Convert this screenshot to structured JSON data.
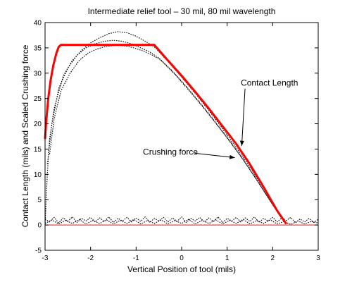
{
  "chart_data": {
    "type": "line",
    "title": "Intermediate relief tool – 30 mil, 80 mil wavelength",
    "xlabel": "Vertical Position of tool (mils)",
    "ylabel": "Contact Length (mils) and Scaled Crushing force",
    "xlim": [
      -3,
      3
    ],
    "ylim": [
      -5,
      40
    ],
    "xticks": [
      -3,
      -2,
      -1,
      0,
      1,
      2,
      3
    ],
    "yticks": [
      -5,
      0,
      5,
      10,
      15,
      20,
      25,
      30,
      35,
      40
    ],
    "grid": false,
    "series": [
      {
        "color": "#ff0000",
        "style": "solid-thick",
        "x": [
          -3.0,
          -2.97,
          -2.93,
          -2.88,
          -2.82,
          -2.75,
          -2.7,
          -2.65,
          -0.6,
          -0.3,
          0.0,
          0.3,
          0.6,
          0.9,
          1.2,
          1.5,
          1.8,
          2.1,
          2.3
        ],
        "y": [
          17.0,
          21.0,
          25.0,
          28.5,
          31.5,
          34.0,
          35.2,
          35.6,
          35.6,
          32.5,
          29.5,
          26.3,
          23.0,
          19.5,
          16.0,
          12.0,
          7.5,
          2.8,
          0.2
        ]
      },
      {
        "color": "#ff0000",
        "style": "solid-thin",
        "x": [
          -3.0,
          3.0
        ],
        "y": [
          0.0,
          0.0
        ]
      },
      {
        "color": "#000000",
        "style": "dotted",
        "x": [
          -3.0,
          -2.95,
          -2.9,
          -2.8,
          -2.6,
          -2.4,
          -2.2,
          -2.0,
          -1.8,
          -1.6,
          -1.4,
          -1.2,
          -1.0,
          -0.8,
          -0.6,
          -0.3,
          0.0,
          0.3,
          0.6,
          0.9,
          1.2,
          1.5,
          1.8,
          2.0,
          2.2,
          2.3
        ],
        "y": [
          0.0,
          10.0,
          17.0,
          23.0,
          29.5,
          32.5,
          34.5,
          36.0,
          37.0,
          37.8,
          38.2,
          38.0,
          37.3,
          36.3,
          35.2,
          32.3,
          29.2,
          26.0,
          22.6,
          19.0,
          15.3,
          11.4,
          7.2,
          4.3,
          1.6,
          0.4
        ]
      },
      {
        "color": "#000000",
        "style": "dotted",
        "x": [
          -2.95,
          -2.85,
          -2.7,
          -2.5,
          -2.3,
          -2.1,
          -1.9,
          -1.7,
          -1.5,
          -1.3,
          -1.1,
          -0.9,
          -0.7,
          -0.5,
          -0.2,
          0.1,
          0.4,
          0.7,
          1.0,
          1.3,
          1.6,
          1.9,
          2.1,
          2.25
        ],
        "y": [
          12.0,
          20.0,
          27.0,
          31.0,
          33.5,
          35.0,
          35.8,
          36.3,
          36.5,
          36.3,
          35.8,
          35.0,
          34.2,
          33.0,
          30.4,
          27.4,
          24.2,
          20.8,
          17.3,
          13.6,
          9.6,
          5.4,
          2.6,
          0.6
        ]
      },
      {
        "color": "#000000",
        "style": "dotted",
        "x": [
          -2.9,
          -2.8,
          -2.65,
          -2.45,
          -2.25,
          -2.05,
          -1.85,
          -1.65,
          -1.45,
          -1.25,
          -1.05,
          -0.85,
          -0.65,
          -0.45,
          -0.15,
          0.15,
          0.45,
          0.75,
          1.05,
          1.35,
          1.65,
          1.95,
          2.15,
          2.3
        ],
        "y": [
          14.0,
          21.0,
          26.5,
          30.0,
          32.5,
          34.0,
          34.8,
          35.3,
          35.5,
          35.4,
          35.0,
          34.4,
          33.6,
          32.5,
          29.8,
          26.7,
          23.5,
          20.1,
          16.6,
          12.9,
          8.9,
          4.7,
          1.9,
          0.3
        ]
      },
      {
        "color": "#000000",
        "style": "dotted-wavy",
        "x": [
          -3.0,
          -2.9,
          -2.8,
          -2.7,
          -2.6,
          -2.5,
          -2.4,
          -2.3,
          -2.2,
          -2.1,
          -2.0,
          -1.9,
          -1.8,
          -1.7,
          -1.6,
          -1.5,
          -1.4,
          -1.3,
          -1.2,
          -1.1,
          -1.0,
          -0.9,
          -0.8,
          -0.7,
          -0.6,
          -0.5,
          -0.4,
          -0.3,
          -0.2,
          -0.1,
          0.0,
          0.1,
          0.2,
          0.3,
          0.4,
          0.5,
          0.6,
          0.7,
          0.8,
          0.9,
          1.0,
          1.1,
          1.2,
          1.3,
          1.4,
          1.5,
          1.6,
          1.7,
          1.8,
          1.9,
          2.0,
          2.1,
          2.2,
          2.3,
          2.4,
          2.5,
          2.6,
          2.7,
          2.8,
          2.9,
          3.0
        ],
        "y": [
          1.2,
          0.6,
          1.5,
          0.4,
          1.4,
          0.7,
          1.6,
          0.5,
          1.3,
          0.8,
          1.5,
          0.6,
          1.4,
          0.7,
          1.6,
          0.5,
          1.3,
          0.8,
          1.5,
          0.6,
          1.4,
          0.7,
          1.6,
          0.5,
          1.3,
          0.8,
          1.5,
          0.6,
          1.4,
          0.7,
          1.6,
          0.5,
          1.3,
          0.8,
          1.5,
          0.6,
          1.4,
          0.7,
          1.6,
          0.5,
          1.3,
          0.8,
          1.5,
          0.6,
          1.4,
          0.7,
          1.6,
          0.5,
          1.3,
          0.8,
          1.5,
          0.6,
          1.4,
          0.9,
          1.5,
          0.4,
          1.2,
          0.6,
          1.3,
          0.5,
          1.1
        ]
      },
      {
        "color": "#000000",
        "style": "dotted-wavy",
        "x": [
          -3.0,
          -2.85,
          -2.7,
          -2.55,
          -2.4,
          -2.25,
          -2.1,
          -1.95,
          -1.8,
          -1.65,
          -1.5,
          -1.35,
          -1.2,
          -1.05,
          -0.9,
          -0.75,
          -0.6,
          -0.45,
          -0.3,
          -0.15,
          0.0,
          0.15,
          0.3,
          0.45,
          0.6,
          0.75,
          0.9,
          1.05,
          1.2,
          1.35,
          1.5,
          1.65,
          1.8,
          1.95,
          2.1,
          2.25,
          2.4,
          2.55,
          2.7,
          2.85,
          3.0
        ],
        "y": [
          0.3,
          1.0,
          0.2,
          0.9,
          0.3,
          1.1,
          0.2,
          0.9,
          0.3,
          1.0,
          0.2,
          0.9,
          0.3,
          1.1,
          0.2,
          0.9,
          0.3,
          1.0,
          0.2,
          0.9,
          0.3,
          1.1,
          0.2,
          0.9,
          0.3,
          1.0,
          0.2,
          0.9,
          0.3,
          1.1,
          0.2,
          0.9,
          0.3,
          1.0,
          0.2,
          0.7,
          0.1,
          0.8,
          0.2,
          0.7,
          0.4
        ]
      }
    ],
    "annotations": [
      {
        "text": "Contact Length",
        "text_xy": [
          1.3,
          27.5
        ],
        "arrow_to": [
          1.32,
          15.6
        ]
      },
      {
        "text": "Crushing force",
        "text_xy": [
          -0.85,
          13.9
        ],
        "arrow_to": [
          1.17,
          13.3
        ]
      }
    ]
  }
}
